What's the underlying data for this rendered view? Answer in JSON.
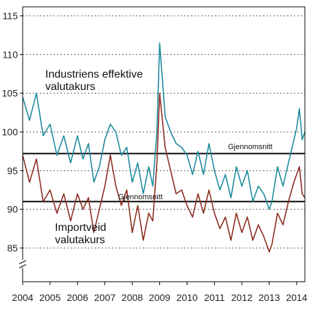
{
  "chart_data": {
    "type": "line",
    "title": "",
    "xlabel": "",
    "ylabel": "",
    "ylim": [
      82,
      115
    ],
    "xlim": [
      2004.0,
      2014.3
    ],
    "yticks": [
      85,
      90,
      95,
      100,
      105,
      110,
      115
    ],
    "xticks": [
      "2004",
      "2005",
      "2006",
      "2007",
      "2008",
      "2009",
      "2010",
      "2011",
      "2012",
      "2013",
      "2014"
    ],
    "grid": "horizontal-dotted",
    "axis_break": true,
    "colors": {
      "teal": "#1a8a9c",
      "brown": "#8b2a1c",
      "reference": "#000000",
      "grid": "#555555"
    },
    "reference_lines": [
      {
        "label": "Gjennomsnitt",
        "value": 97.2
      },
      {
        "label": "Gjennomsnitt",
        "value": 91.0
      }
    ],
    "series": [
      {
        "name": "Industriens effektive valutakurs",
        "color": "#1a8a9c",
        "x": [
          2004.0,
          2004.25,
          2004.5,
          2004.75,
          2005.0,
          2005.25,
          2005.5,
          2005.75,
          2006.0,
          2006.2,
          2006.4,
          2006.6,
          2006.8,
          2007.0,
          2007.2,
          2007.4,
          2007.6,
          2007.8,
          2008.0,
          2008.2,
          2008.4,
          2008.6,
          2008.75,
          2008.9,
          2009.0,
          2009.2,
          2009.4,
          2009.6,
          2009.8,
          2010.0,
          2010.2,
          2010.4,
          2010.6,
          2010.8,
          2011.0,
          2011.2,
          2011.4,
          2011.6,
          2011.8,
          2012.0,
          2012.2,
          2012.4,
          2012.6,
          2012.8,
          2013.0,
          2013.1,
          2013.3,
          2013.5,
          2013.7,
          2013.9,
          2014.0,
          2014.1,
          2014.2,
          2014.3
        ],
        "values": [
          104.5,
          101.5,
          105.0,
          99.5,
          101.0,
          97.0,
          99.5,
          96.0,
          99.5,
          96.5,
          98.5,
          93.5,
          95.5,
          99.0,
          101.0,
          100.0,
          97.0,
          98.0,
          93.5,
          96.0,
          92.0,
          95.5,
          93.0,
          100.0,
          111.5,
          102.0,
          100.0,
          98.5,
          98.0,
          97.0,
          94.5,
          97.5,
          94.5,
          98.5,
          95.0,
          92.5,
          94.5,
          91.5,
          95.5,
          93.0,
          95.0,
          91.0,
          93.0,
          92.0,
          90.0,
          91.0,
          95.5,
          93.0,
          96.0,
          99.0,
          100.5,
          103.0,
          99.0,
          100.0
        ]
      },
      {
        "name": "Importveid valutakurs",
        "color": "#8b2a1c",
        "x": [
          2004.0,
          2004.25,
          2004.5,
          2004.75,
          2005.0,
          2005.25,
          2005.5,
          2005.75,
          2006.0,
          2006.2,
          2006.4,
          2006.6,
          2006.8,
          2007.0,
          2007.2,
          2007.4,
          2007.6,
          2007.8,
          2008.0,
          2008.2,
          2008.4,
          2008.6,
          2008.75,
          2008.9,
          2009.0,
          2009.2,
          2009.4,
          2009.6,
          2009.8,
          2010.0,
          2010.2,
          2010.4,
          2010.6,
          2010.8,
          2011.0,
          2011.2,
          2011.4,
          2011.6,
          2011.8,
          2012.0,
          2012.2,
          2012.4,
          2012.6,
          2012.8,
          2013.0,
          2013.1,
          2013.3,
          2013.5,
          2013.7,
          2013.9,
          2014.0,
          2014.1,
          2014.2,
          2014.3
        ],
        "values": [
          97.0,
          93.5,
          96.5,
          91.0,
          92.5,
          89.5,
          92.0,
          88.5,
          92.0,
          90.0,
          91.5,
          87.0,
          90.0,
          93.0,
          97.0,
          93.0,
          90.5,
          92.5,
          87.0,
          90.5,
          86.0,
          89.5,
          88.5,
          96.0,
          105.0,
          98.0,
          95.0,
          92.0,
          92.5,
          90.5,
          89.0,
          92.0,
          89.5,
          92.5,
          89.5,
          87.5,
          89.0,
          86.0,
          89.5,
          87.0,
          89.0,
          86.0,
          88.0,
          86.5,
          84.5,
          85.5,
          89.5,
          88.0,
          91.0,
          93.5,
          94.5,
          95.5,
          92.0,
          91.5
        ]
      }
    ]
  },
  "labels": {
    "teal_line1": "Industriens effektive",
    "teal_line2": "valutakurs",
    "brown_line1": "Importveid",
    "brown_line2": "valutakurs",
    "ref_upper": "Gjennomsnitt",
    "ref_lower": "Gjennomsnitt"
  }
}
